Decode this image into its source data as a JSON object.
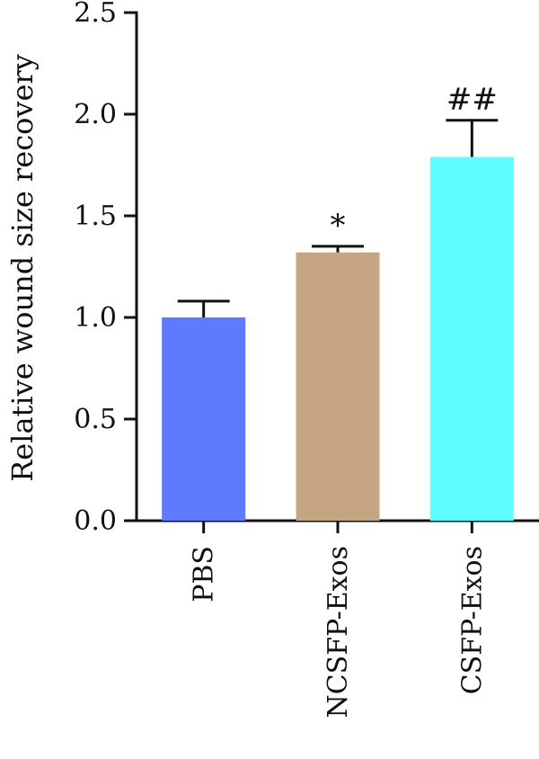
{
  "chart_data": {
    "type": "bar",
    "categories": [
      "PBS",
      "NCSFP-Exos",
      "CSFP-Exos"
    ],
    "values": [
      1.0,
      1.32,
      1.79
    ],
    "errors": [
      0.08,
      0.03,
      0.18
    ],
    "annotations": [
      "",
      "*",
      "##"
    ],
    "colors": [
      "#5e7bff",
      "#c6a582",
      "#5efeff"
    ],
    "title": "",
    "xlabel": "",
    "ylabel": "Relative wound size recovery",
    "ylim": [
      0,
      2.5
    ],
    "yticks": [
      "0.0",
      "0.5",
      "1.0",
      "1.5",
      "2.0",
      "2.5"
    ],
    "grid": false,
    "legend": "none"
  }
}
